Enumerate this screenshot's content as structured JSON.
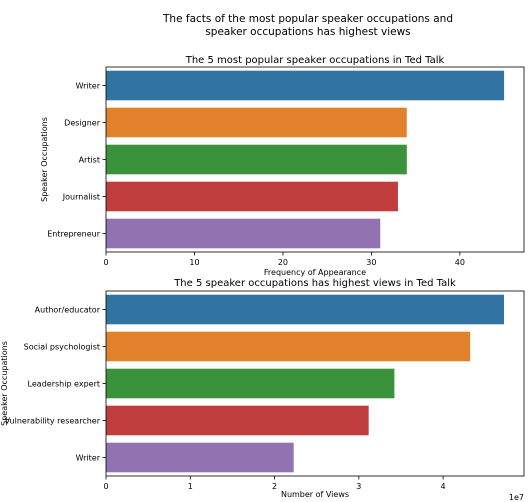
{
  "figure": {
    "suptitle_line1": "The facts of the most popular speaker occupations and",
    "suptitle_line2": "speaker occupations has highest views"
  },
  "chart_data": [
    {
      "type": "bar",
      "orientation": "horizontal",
      "title": "The 5 most popular speaker occupations in Ted Talk",
      "xlabel": "Frequency of Appearance",
      "ylabel": "Speaker Occupations",
      "categories": [
        "Writer",
        "Designer",
        "Artist",
        "Journalist",
        "Entrepreneur"
      ],
      "values": [
        45,
        34,
        34,
        33,
        31
      ],
      "colors": [
        "#3274a1",
        "#e1812c",
        "#3a923a",
        "#c03d3e",
        "#9372b2"
      ],
      "xlim": [
        0,
        47.25
      ],
      "xticks": [
        0,
        10,
        20,
        30,
        40
      ],
      "xtick_labels": [
        "0",
        "10",
        "20",
        "30",
        "40"
      ]
    },
    {
      "type": "bar",
      "orientation": "horizontal",
      "title": "The 5 speaker occupations has highest views in Ted Talk",
      "xlabel": "Number of Views",
      "ylabel": "Speaker Occupations",
      "categories": [
        "Author/educator",
        "Social psychologist",
        "Leadership expert",
        "Vulnerability researcher",
        "Writer"
      ],
      "values": [
        47227110,
        43214300,
        34220000,
        31168150,
        22270883
      ],
      "colors": [
        "#3274a1",
        "#e1812c",
        "#3a923a",
        "#c03d3e",
        "#9372b2"
      ],
      "xlim": [
        0,
        49600000
      ],
      "xticks": [
        0,
        10000000,
        20000000,
        30000000,
        40000000
      ],
      "xtick_labels": [
        "0",
        "1",
        "2",
        "3",
        "4"
      ],
      "offset_text": "1e7"
    }
  ]
}
